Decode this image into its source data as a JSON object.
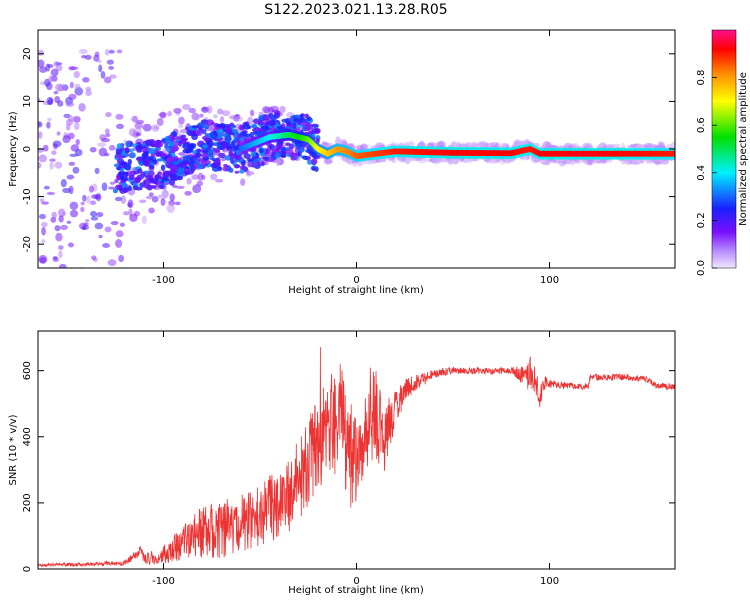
{
  "figure": {
    "title": "S122.2023.021.13.28.R05"
  },
  "colors": {
    "snr_line": "#ee3333",
    "spectrogram_scale": [
      "#f0e8ff",
      "#7a10ff",
      "#1a20ff",
      "#00f0ff",
      "#00e000",
      "#ffff00",
      "#ff8800",
      "#ff0000",
      "#ff1090"
    ]
  },
  "chart_data": [
    {
      "type": "heatmap",
      "title": "S122.2023.021.13.28.R05",
      "xlabel": "Height of straight line (km)",
      "ylabel": "Frequency (Hz)",
      "xlim": [
        -165,
        165
      ],
      "ylim": [
        -25,
        25
      ],
      "xticks": [
        -100,
        0,
        100
      ],
      "xtick_labels": [
        "-100",
        "0",
        "100"
      ],
      "yticks": [
        -20,
        -10,
        0,
        10,
        20
      ],
      "ytick_labels": [
        "-20",
        "-10",
        "0",
        "10",
        "20"
      ],
      "colorbar": {
        "label": "Normalized spectral amplitude",
        "range": [
          0,
          1
        ],
        "ticks": [
          0.0,
          0.2,
          0.4,
          0.6,
          0.8
        ],
        "tick_labels": [
          "0.0",
          "0.2",
          "0.4",
          "0.6",
          "0.8"
        ]
      },
      "ridge": {
        "description_points_x": [
          -120,
          -100,
          -80,
          -60,
          -45,
          -35,
          -25,
          -20,
          -15,
          -10,
          -5,
          0,
          20,
          50,
          80,
          90,
          95,
          120,
          165
        ],
        "description_points_y": [
          -4,
          -3,
          1,
          0,
          2.5,
          3,
          2,
          0,
          -1,
          0,
          -0.5,
          -1.5,
          -0.5,
          -0.8,
          -0.9,
          0,
          -1,
          -1,
          -1
        ],
        "description_points_amp": [
          0.15,
          0.2,
          0.25,
          0.3,
          0.4,
          0.5,
          0.6,
          0.7,
          0.75,
          0.8,
          0.82,
          0.85,
          0.9,
          0.92,
          0.92,
          0.9,
          0.92,
          0.93,
          0.9
        ]
      }
    },
    {
      "type": "line",
      "xlabel": "Height of straight line (km)",
      "ylabel": "SNR (10 * v/v)",
      "xlim": [
        -165,
        165
      ],
      "ylim": [
        0,
        720
      ],
      "xticks": [
        -100,
        0,
        100
      ],
      "xtick_labels": [
        "-100",
        "0",
        "100"
      ],
      "yticks": [
        0,
        200,
        400,
        600
      ],
      "ytick_labels": [
        "0",
        "200",
        "400",
        "600"
      ],
      "series": [
        {
          "x": [
            -165,
            -140,
            -120,
            -112,
            -110,
            -100,
            -90,
            -80,
            -70,
            -60,
            -50,
            -40,
            -30,
            -25,
            -20,
            -15,
            -10,
            -8,
            -5,
            -2,
            0,
            5,
            10,
            15,
            20,
            25,
            30,
            40,
            50,
            60,
            70,
            80,
            85,
            88,
            90,
            92,
            95,
            98,
            100,
            110,
            120,
            121,
            130,
            140,
            150,
            155,
            156,
            165
          ],
          "y": [
            12,
            14,
            18,
            55,
            30,
            40,
            80,
            110,
            120,
            140,
            160,
            200,
            260,
            320,
            380,
            420,
            450,
            500,
            350,
            300,
            330,
            420,
            470,
            400,
            480,
            540,
            560,
            590,
            600,
            600,
            600,
            600,
            590,
            560,
            600,
            580,
            520,
            570,
            560,
            555,
            550,
            580,
            580,
            580,
            575,
            555,
            555,
            550
          ],
          "amplitude": [
            5,
            5,
            8,
            15,
            15,
            30,
            50,
            80,
            90,
            90,
            95,
            110,
            130,
            140,
            140,
            150,
            170,
            180,
            170,
            160,
            130,
            120,
            150,
            110,
            60,
            35,
            25,
            15,
            10,
            10,
            10,
            10,
            25,
            50,
            60,
            45,
            35,
            20,
            12,
            10,
            10,
            10,
            10,
            10,
            10,
            10,
            10,
            10
          ]
        }
      ]
    }
  ]
}
